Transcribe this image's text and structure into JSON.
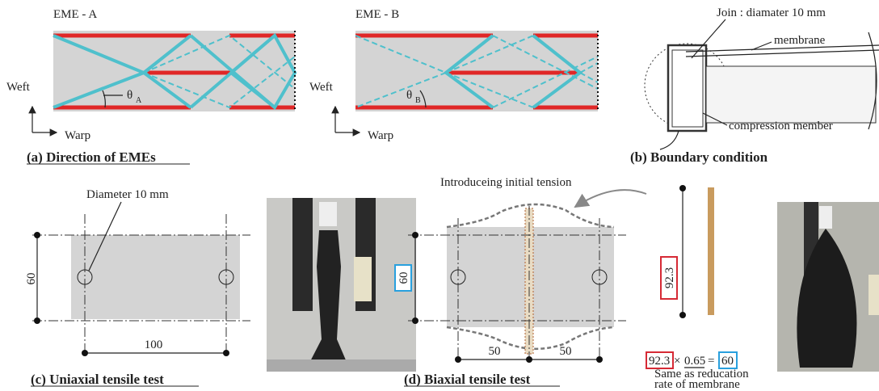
{
  "panel_a": {
    "caption": "(a) Direction of EMEs",
    "diagrams": [
      {
        "title": "EME - A",
        "angle": "θ",
        "angle_sub": "A",
        "weft": "Weft",
        "warp": "Warp"
      },
      {
        "title": "EME - B",
        "angle": "θ",
        "angle_sub": "B",
        "weft": "Weft",
        "warp": "Warp"
      }
    ]
  },
  "panel_b": {
    "caption": "(b) Boundary condition",
    "join": "Join : diamater 10 mm",
    "membrane": "membrane",
    "compression": "compression member"
  },
  "panel_c": {
    "caption": "(c) Uniaxial tensile test",
    "diameter": "Diameter 10 mm",
    "height": 60,
    "width": 100
  },
  "panel_d": {
    "caption": "(d) Biaxial tensile test",
    "tension": "Introduceing initial tension",
    "height": 60,
    "left": 50,
    "right": 50,
    "length": 92.3,
    "formula": {
      "a": 92.3,
      "times": "×",
      "b": 0.65,
      "eq": "=",
      "c": 60
    },
    "note": [
      "Same as reducation",
      "rate of membrane"
    ]
  }
}
